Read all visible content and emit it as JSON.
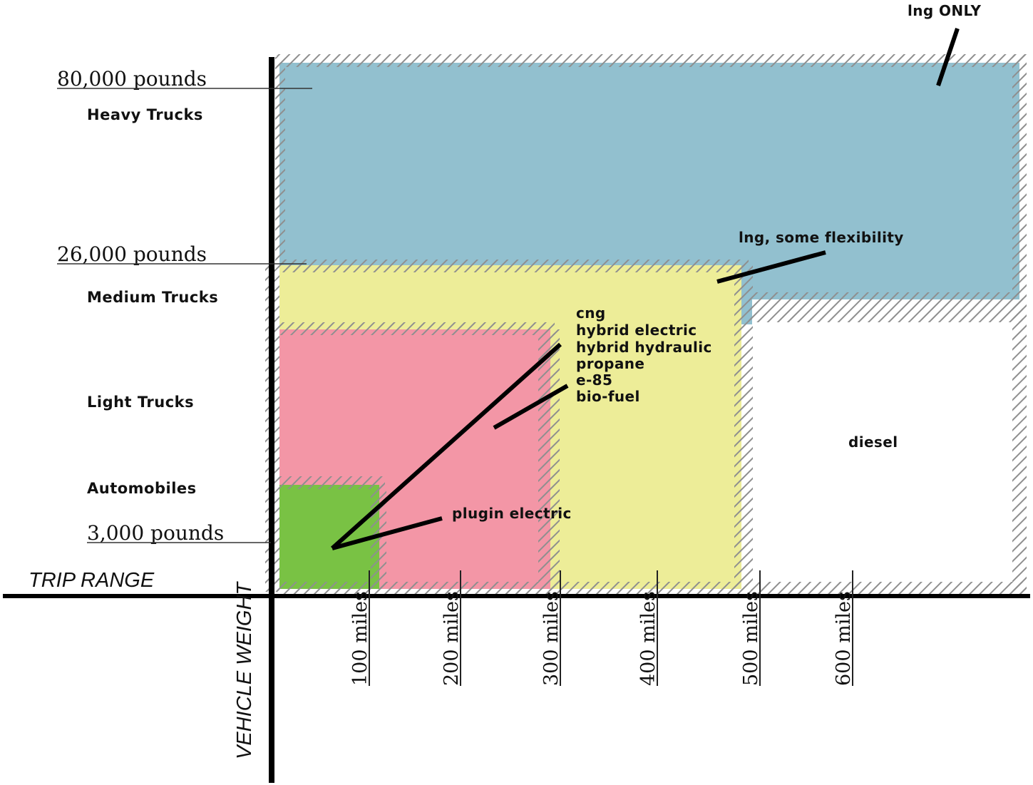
{
  "title_partial": "",
  "weight_labels": {
    "w80000": "80,000 pounds",
    "w26000": "26,000 pounds",
    "w3000": "3,000 pounds"
  },
  "categories": {
    "heavy": "Heavy Trucks",
    "medium": "Medium Trucks",
    "light": "Light Trucks",
    "auto": "Automobiles"
  },
  "axes": {
    "x_title": "TRIP RANGE",
    "y_title": "VEHICLE WEIGHT"
  },
  "mile_ticks": [
    "100 miles",
    "200 miles",
    "300 miles",
    "400 miles",
    "500 miles",
    "600 miles"
  ],
  "fuels": {
    "lng_only": "lng ONLY",
    "lng_flex": "lng, some flexibility",
    "multi": [
      "cng",
      "hybrid electric",
      "hybrid hydraulic",
      "propane",
      "e-85",
      "bio-fuel"
    ],
    "diesel": "diesel",
    "plugin": "plugin electric"
  },
  "colors": {
    "heavy_region": "#92c0cf",
    "medium_region": "#eded98",
    "light_region": "#f396a6",
    "auto_region": "#79c244",
    "border": "#9a9a9a",
    "axis": "#000000"
  }
}
